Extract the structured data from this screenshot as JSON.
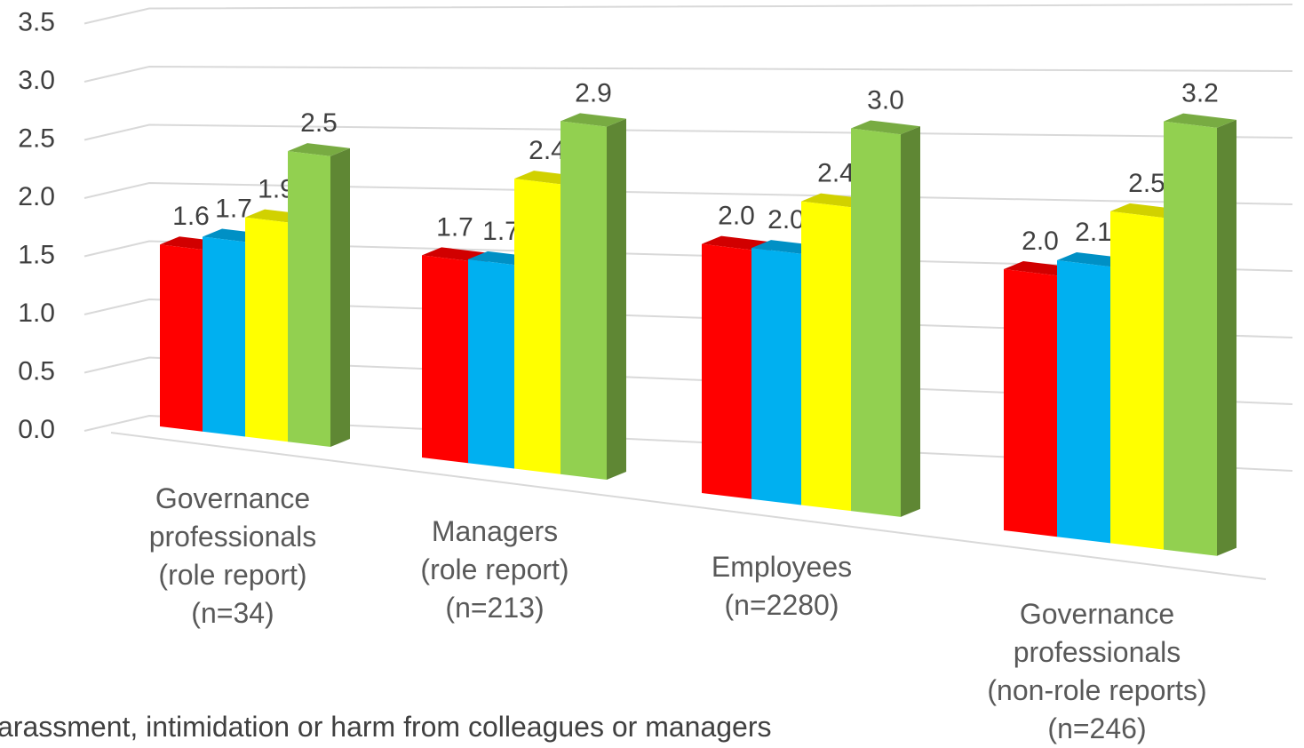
{
  "chart_data": {
    "type": "bar3d",
    "categories": [
      "Governance\nprofessionals\n(role report)\n(n=34)",
      "Managers\n(role report)\n(n=213)",
      "Employees\n(n=2280)",
      "Governance\nprofessionals\n(non-role reports)\n(n=246)"
    ],
    "series": [
      {
        "color": "#ff0000",
        "values": [
          1.6,
          1.7,
          2.0,
          2.0
        ],
        "value_labels": [
          "1.6",
          "1.7",
          "2.0",
          "2.0"
        ]
      },
      {
        "color": "#00b0f0",
        "values": [
          1.7,
          1.7,
          2.0,
          2.1
        ],
        "value_labels": [
          "1.7",
          "1.7",
          "2.0",
          "2.1"
        ]
      },
      {
        "color": "#ffff00",
        "values": [
          1.9,
          2.4,
          2.4,
          2.5
        ],
        "value_labels": [
          "1.9",
          "2.4",
          "2.4",
          "2.5"
        ]
      },
      {
        "color": "#92d050",
        "values": [
          2.5,
          2.9,
          3.0,
          3.2
        ],
        "value_labels": [
          "2.5",
          "2.9",
          "3.0",
          "3.2"
        ]
      }
    ],
    "legend_text": "arassment, intimidation or harm from colleagues or managers",
    "ylim": [
      0,
      3.5
    ],
    "yticks": [
      {
        "value": 0,
        "label": "0.0"
      },
      0.5,
      {
        "value": 1,
        "label": "1.0"
      },
      1.5,
      {
        "value": 2,
        "label": "2.0"
      },
      2.5,
      {
        "value": 3,
        "label": "3.0"
      },
      3.5
    ],
    "grid": true
  }
}
